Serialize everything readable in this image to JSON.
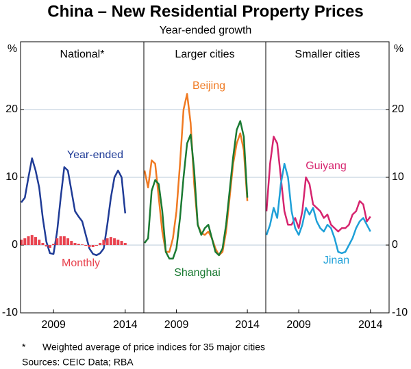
{
  "title": "China – New Residential Property Prices",
  "subtitle": "Year-ended growth",
  "ylabel": "%",
  "footnote": {
    "marker": "*",
    "text": "Weighted average of price indices for 35 major cities"
  },
  "sources": "Sources:  CEIC Data; RBA",
  "chart_data": [
    {
      "type": "line",
      "title": "National*",
      "x": [
        2006.75,
        2007.0,
        2007.25,
        2007.5,
        2007.75,
        2008.0,
        2008.25,
        2008.5,
        2008.75,
        2009.0,
        2009.25,
        2009.5,
        2009.75,
        2010.0,
        2010.25,
        2010.5,
        2010.75,
        2011.0,
        2011.25,
        2011.5,
        2011.75,
        2012.0,
        2012.25,
        2012.5,
        2012.75,
        2013.0,
        2013.25,
        2013.5,
        2013.75,
        2014.0
      ],
      "series": [
        {
          "name": "Year-ended",
          "color": "#1f3b96",
          "values": [
            6.3,
            7,
            10,
            12.8,
            11,
            8.5,
            4,
            0.5,
            -1.2,
            -1.3,
            2,
            7,
            11.5,
            11,
            8,
            5,
            4.2,
            3.5,
            1.5,
            -0.5,
            -1.3,
            -1.5,
            -1.2,
            -0.5,
            3,
            7,
            10,
            11,
            10,
            4.7
          ]
        },
        {
          "name": "Monthly",
          "color": "#e8434f",
          "type": "bar",
          "values": [
            0.8,
            1,
            1.3,
            1.5,
            1.2,
            0.8,
            0.3,
            -0.2,
            -0.4,
            0.2,
            1,
            1.3,
            1.3,
            1,
            0.6,
            0.3,
            0.2,
            0.1,
            -0.1,
            -0.3,
            -0.3,
            -0.1,
            0.3,
            0.8,
            1,
            1.2,
            1,
            0.8,
            0.6,
            0.3
          ]
        }
      ],
      "xlim": [
        2006.7,
        2015.3
      ],
      "xticks": [
        2009,
        2014
      ],
      "ylim": [
        -10,
        30
      ],
      "yticks": [
        -10,
        0,
        10,
        20
      ],
      "grid": true
    },
    {
      "type": "line",
      "title": "Larger cities",
      "x": [
        2006.75,
        2007.0,
        2007.25,
        2007.5,
        2007.75,
        2008.0,
        2008.25,
        2008.5,
        2008.75,
        2009.0,
        2009.25,
        2009.5,
        2009.75,
        2010.0,
        2010.25,
        2010.5,
        2010.75,
        2011.0,
        2011.25,
        2011.5,
        2011.75,
        2012.0,
        2012.25,
        2012.5,
        2012.75,
        2013.0,
        2013.25,
        2013.5,
        2013.75,
        2014.0
      ],
      "series": [
        {
          "name": "Beijing",
          "color": "#f07a22",
          "values": [
            11,
            8.5,
            12.5,
            12,
            7,
            2,
            -1,
            -1,
            1,
            5,
            12,
            20,
            22.3,
            18,
            9,
            3,
            1.8,
            1.5,
            2,
            1,
            -0.5,
            -1.5,
            -1,
            2,
            7,
            12,
            15,
            16.5,
            14,
            6.5
          ]
        },
        {
          "name": "Shanghai",
          "color": "#1a7a32",
          "values": [
            0.3,
            1,
            8,
            9.6,
            9,
            5,
            -1,
            -2,
            -2,
            -0.5,
            4,
            10,
            15,
            16.3,
            11,
            3,
            1.5,
            2.5,
            3,
            1,
            -1,
            -1.5,
            -0.5,
            3,
            8,
            13,
            17,
            18.3,
            16,
            7
          ]
        }
      ],
      "xlim": [
        2006.7,
        2015.3
      ],
      "xticks": [
        2009,
        2014
      ],
      "ylim": [
        -10,
        30
      ],
      "yticks": [
        -10,
        0,
        10,
        20
      ],
      "grid": true
    },
    {
      "type": "line",
      "title": "Smaller cities",
      "x": [
        2006.75,
        2007.0,
        2007.25,
        2007.5,
        2007.75,
        2008.0,
        2008.25,
        2008.5,
        2008.75,
        2009.0,
        2009.25,
        2009.5,
        2009.75,
        2010.0,
        2010.25,
        2010.5,
        2010.75,
        2011.0,
        2011.25,
        2011.5,
        2011.75,
        2012.0,
        2012.25,
        2012.5,
        2012.75,
        2013.0,
        2013.25,
        2013.5,
        2013.75,
        2014.0
      ],
      "series": [
        {
          "name": "Guiyang",
          "color": "#d6246e",
          "values": [
            5,
            12,
            16,
            15,
            10,
            5,
            3,
            3,
            4,
            2.5,
            5,
            10,
            9,
            6,
            5.5,
            5,
            4,
            4.5,
            3,
            2.5,
            2,
            2.5,
            2.5,
            3,
            4.5,
            5,
            6.5,
            6,
            3.5,
            4.2
          ]
        },
        {
          "name": "Jinan",
          "color": "#1ea0d8",
          "values": [
            1.5,
            3,
            5.5,
            4,
            9,
            12,
            10,
            5,
            2.5,
            1.5,
            3,
            5.5,
            4.5,
            5.5,
            3.5,
            2.5,
            2,
            3,
            2.5,
            1,
            -1,
            -1.2,
            -1,
            0,
            1,
            2.5,
            3.5,
            4,
            3,
            2
          ]
        }
      ],
      "xlim": [
        2006.7,
        2015.3
      ],
      "xticks": [
        2009,
        2014
      ],
      "ylim": [
        -10,
        30
      ],
      "yticks": [
        -10,
        0,
        10,
        20
      ],
      "grid": true
    }
  ]
}
